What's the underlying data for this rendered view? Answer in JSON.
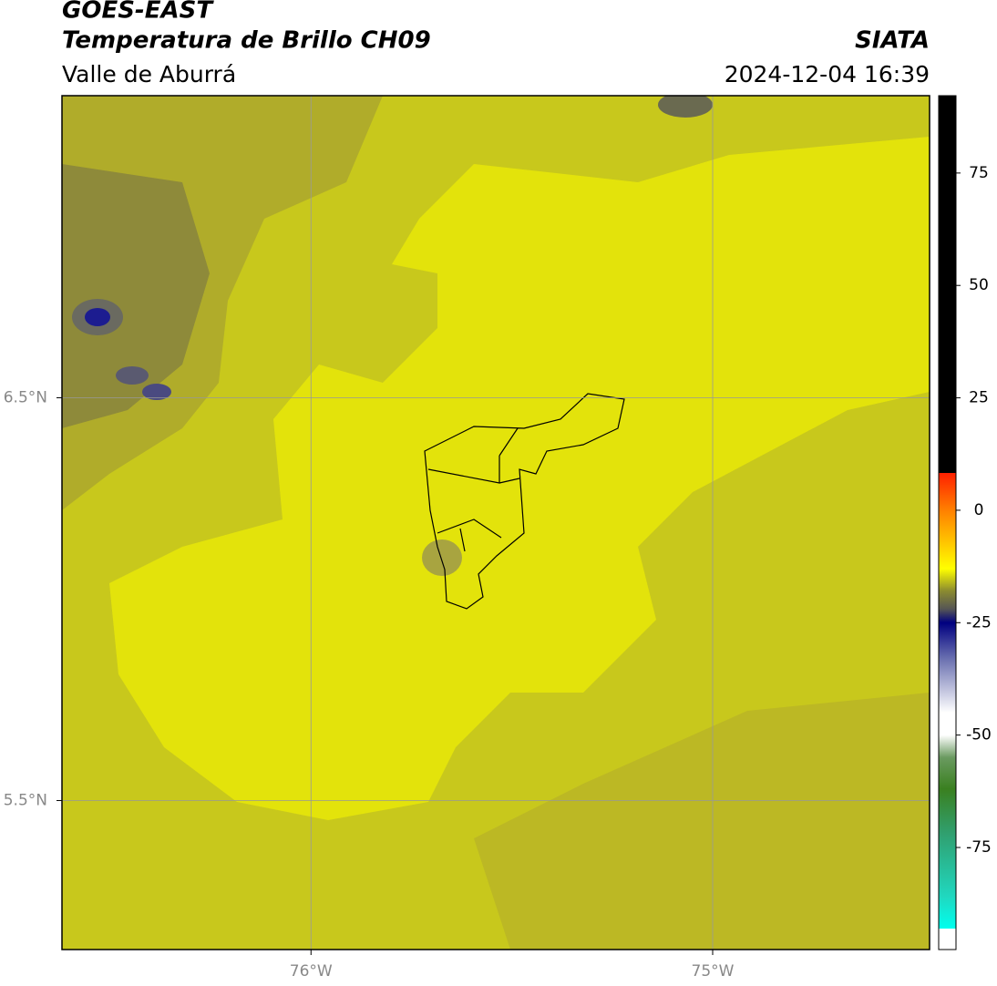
{
  "chart_data": {
    "type": "map",
    "title": "GOES-EAST",
    "subtitle": "Temperatura de Brillo CH09",
    "source": "SIATA",
    "region": "Valle de Aburrá",
    "date": "2024-12-04 16:39",
    "xlim": [
      -76.62,
      -74.46
    ],
    "ylim": [
      5.13,
      7.25
    ],
    "xticks": [
      {
        "value": -76,
        "label": "76°W"
      },
      {
        "value": -75,
        "label": "75°W"
      }
    ],
    "yticks": [
      {
        "value": 5.5,
        "label": "5.5°N"
      },
      {
        "value": 6.5,
        "label": "6.5°N"
      }
    ],
    "grid": true,
    "colorbar": {
      "lim": [
        -97.7,
        92.2
      ],
      "ticks": [
        -75,
        -50,
        -25,
        0,
        25,
        50,
        75
      ],
      "stops": [
        {
          "value": 92.2,
          "color": "#000000"
        },
        {
          "value": 8.3,
          "color": "#000000"
        },
        {
          "value": 8.3,
          "color": "#ff2000"
        },
        {
          "value": 0,
          "color": "#ff8000"
        },
        {
          "value": -13,
          "color": "#ffff00"
        },
        {
          "value": -18,
          "color": "#8a8a30"
        },
        {
          "value": -22,
          "color": "#555555"
        },
        {
          "value": -25,
          "color": "#000080"
        },
        {
          "value": -33,
          "color": "#6a70b0"
        },
        {
          "value": -45,
          "color": "#ffffff"
        },
        {
          "value": -50,
          "color": "#ffffff"
        },
        {
          "value": -55,
          "color": "#6a9a60"
        },
        {
          "value": -62,
          "color": "#3a8020"
        },
        {
          "value": -72,
          "color": "#30a070"
        },
        {
          "value": -86,
          "color": "#20d8c0"
        },
        {
          "value": -93,
          "color": "#00ffee"
        },
        {
          "value": -93,
          "color": "#ffffff"
        },
        {
          "value": -97.7,
          "color": "#ffffff"
        }
      ]
    }
  }
}
